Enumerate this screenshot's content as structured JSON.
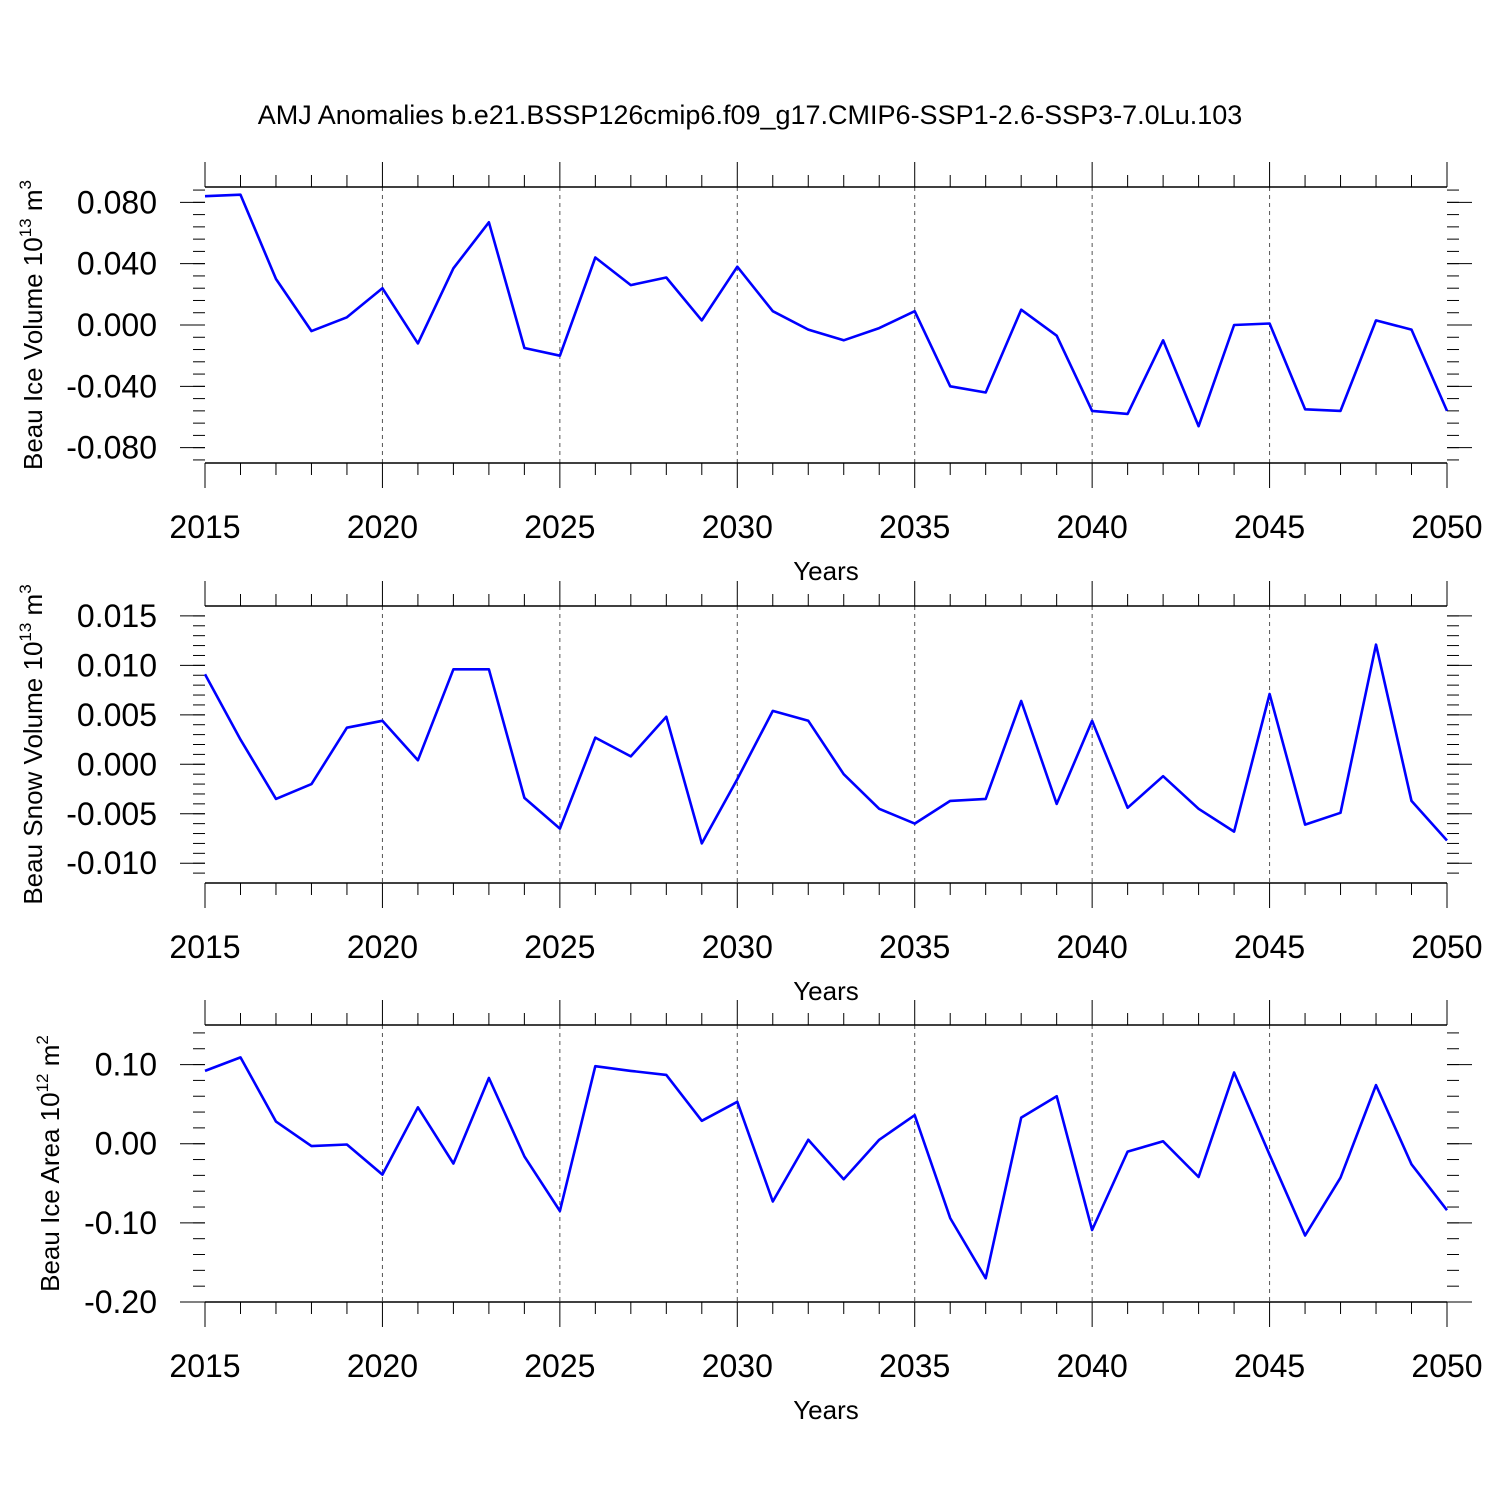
{
  "title": "AMJ Anomalies b.e21.BSSP126cmip6.f09_g17.CMIP6-SSP1-2.6-SSP3-7.0Lu.103",
  "line_color": "#0000ff",
  "chart_data": [
    {
      "type": "line",
      "ylabel": "Beau Ice Volume 10",
      "ylabel_exp": "13",
      "ylabel_unit": " m",
      "ylabel_unit_exp": "3",
      "xlabel": "Years",
      "xlim": [
        2015,
        2050
      ],
      "ylim": [
        -0.09,
        0.09
      ],
      "xticks": [
        2015,
        2020,
        2025,
        2030,
        2035,
        2040,
        2045,
        2050
      ],
      "xtick_labels": [
        "2015",
        "2020",
        "2025",
        "2030",
        "2035",
        "2040",
        "2045",
        "2050"
      ],
      "yticks": [
        0.08,
        0.04,
        0.0,
        -0.04,
        -0.08
      ],
      "ytick_labels": [
        "0.080",
        "0.040",
        "0.000",
        "-0.040",
        "-0.080"
      ],
      "yminor_step": 0.008,
      "xgrid": "dashed at major ticks",
      "x": [
        2015,
        2016,
        2017,
        2018,
        2019,
        2020,
        2021,
        2022,
        2023,
        2024,
        2025,
        2026,
        2027,
        2028,
        2029,
        2030,
        2031,
        2032,
        2033,
        2034,
        2035,
        2036,
        2037,
        2038,
        2039,
        2040,
        2041,
        2042,
        2043,
        2044,
        2045,
        2046,
        2047,
        2048,
        2049,
        2050
      ],
      "y": [
        0.084,
        0.085,
        0.03,
        -0.004,
        0.005,
        0.024,
        -0.012,
        0.037,
        0.067,
        -0.015,
        -0.02,
        0.044,
        0.026,
        0.031,
        0.003,
        0.038,
        0.009,
        -0.003,
        -0.01,
        -0.002,
        0.009,
        -0.04,
        -0.044,
        0.01,
        -0.007,
        -0.056,
        -0.058,
        -0.01,
        -0.066,
        0.0,
        0.001,
        -0.055,
        -0.056,
        0.003,
        -0.003,
        -0.056
      ]
    },
    {
      "type": "line",
      "ylabel": "Beau Snow Volume 10",
      "ylabel_exp": "13",
      "ylabel_unit": " m",
      "ylabel_unit_exp": "3",
      "xlabel": "Years",
      "xlim": [
        2015,
        2050
      ],
      "ylim": [
        -0.012,
        0.016
      ],
      "xticks": [
        2015,
        2020,
        2025,
        2030,
        2035,
        2040,
        2045,
        2050
      ],
      "xtick_labels": [
        "2015",
        "2020",
        "2025",
        "2030",
        "2035",
        "2040",
        "2045",
        "2050"
      ],
      "yticks": [
        0.015,
        0.01,
        0.005,
        0.0,
        -0.005,
        -0.01
      ],
      "ytick_labels": [
        "0.015",
        "0.010",
        "0.005",
        "0.000",
        "-0.005",
        "-0.010"
      ],
      "yminor_step": 0.001,
      "xgrid": "dashed at major ticks",
      "x": [
        2015,
        2016,
        2017,
        2018,
        2019,
        2020,
        2021,
        2022,
        2023,
        2024,
        2025,
        2026,
        2027,
        2028,
        2029,
        2030,
        2031,
        2032,
        2033,
        2034,
        2035,
        2036,
        2037,
        2038,
        2039,
        2040,
        2041,
        2042,
        2043,
        2044,
        2045,
        2046,
        2047,
        2048,
        2049,
        2050
      ],
      "y": [
        0.0091,
        0.0025,
        -0.0035,
        -0.002,
        0.0037,
        0.0044,
        0.0004,
        0.0096,
        0.0096,
        -0.0034,
        -0.0065,
        0.0027,
        0.0008,
        0.0048,
        -0.008,
        -0.0015,
        0.0054,
        0.0044,
        -0.001,
        -0.0045,
        -0.006,
        -0.0037,
        -0.0035,
        0.0064,
        -0.004,
        0.0044,
        -0.0044,
        -0.0012,
        -0.0045,
        -0.0068,
        0.0071,
        -0.0061,
        -0.0049,
        0.0121,
        -0.0037,
        -0.0077
      ]
    },
    {
      "type": "line",
      "ylabel": "Beau Ice Area 10",
      "ylabel_exp": "12",
      "ylabel_unit": " m",
      "ylabel_unit_exp": "2",
      "xlabel": "Years",
      "xlim": [
        2015,
        2050
      ],
      "ylim": [
        -0.2,
        0.15
      ],
      "xticks": [
        2015,
        2020,
        2025,
        2030,
        2035,
        2040,
        2045,
        2050
      ],
      "xtick_labels": [
        "2015",
        "2020",
        "2025",
        "2030",
        "2035",
        "2040",
        "2045",
        "2050"
      ],
      "yticks": [
        0.1,
        0.0,
        -0.1,
        -0.2
      ],
      "ytick_labels": [
        "0.10",
        "0.00",
        "-0.10",
        "-0.20"
      ],
      "yminor_step": 0.02,
      "xgrid": "dashed at major ticks",
      "x": [
        2015,
        2016,
        2017,
        2018,
        2019,
        2020,
        2021,
        2022,
        2023,
        2024,
        2025,
        2026,
        2027,
        2028,
        2029,
        2030,
        2031,
        2032,
        2033,
        2034,
        2035,
        2036,
        2037,
        2038,
        2039,
        2040,
        2041,
        2042,
        2043,
        2044,
        2045,
        2046,
        2047,
        2048,
        2049,
        2050
      ],
      "y": [
        0.092,
        0.109,
        0.028,
        -0.003,
        -0.001,
        -0.039,
        0.046,
        -0.025,
        0.083,
        -0.016,
        -0.085,
        0.098,
        0.092,
        0.087,
        0.029,
        0.053,
        -0.073,
        0.005,
        -0.045,
        0.005,
        0.036,
        -0.094,
        -0.17,
        0.033,
        0.06,
        -0.109,
        -0.01,
        0.003,
        -0.042,
        0.09,
        -0.014,
        -0.116,
        -0.043,
        0.074,
        -0.026,
        -0.084
      ]
    }
  ]
}
